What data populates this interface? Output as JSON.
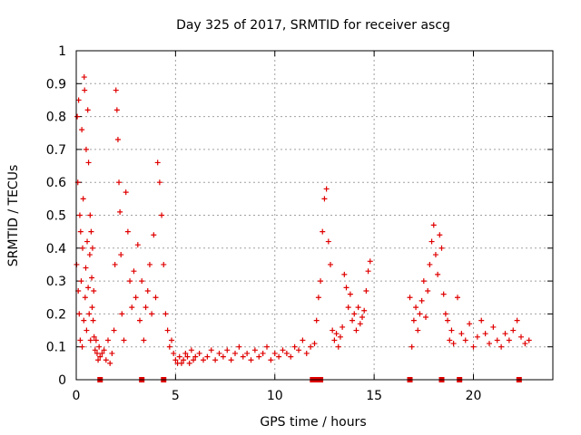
{
  "chart_data": {
    "type": "scatter",
    "title": "Day 325 of 2017, SRMTID for receiver ascg",
    "xlabel": "GPS time / hours",
    "ylabel": "SRMTID / TECUs",
    "xlim": [
      0,
      24
    ],
    "ylim": [
      0,
      1
    ],
    "grid": true,
    "marker": "plus",
    "color": "#e00000",
    "x_ticks": [
      0,
      5,
      10,
      15,
      20
    ],
    "y_ticks": [
      0,
      0.1,
      0.2,
      0.3,
      0.4,
      0.5,
      0.6,
      0.7,
      0.8,
      0.9,
      1
    ],
    "x_tick_labels": [
      "0",
      "5",
      "10",
      "15",
      "20"
    ],
    "y_tick_labels": [
      "0",
      "0.1",
      "0.2",
      "0.3",
      "0.4",
      "0.5",
      "0.6",
      "0.7",
      "0.8",
      "0.9",
      "1"
    ],
    "series": [
      {
        "name": "SRMTID",
        "x": [
          0.02,
          0.05,
          0.08,
          0.1,
          0.12,
          0.15,
          0.18,
          0.2,
          0.22,
          0.25,
          0.28,
          0.3,
          0.32,
          0.35,
          0.38,
          0.4,
          0.42,
          0.45,
          0.48,
          0.5,
          0.52,
          0.55,
          0.58,
          0.6,
          0.62,
          0.65,
          0.68,
          0.7,
          0.72,
          0.75,
          0.78,
          0.8,
          0.82,
          0.85,
          0.88,
          0.9,
          0.95,
          1.0,
          1.05,
          1.1,
          1.15,
          1.2,
          1.3,
          1.4,
          1.5,
          1.6,
          1.7,
          1.8,
          1.9,
          1.95,
          2.0,
          2.05,
          2.1,
          2.15,
          2.2,
          2.25,
          2.3,
          2.4,
          2.5,
          2.6,
          2.7,
          2.8,
          2.9,
          3.0,
          3.1,
          3.2,
          3.3,
          3.4,
          3.5,
          3.6,
          3.7,
          3.8,
          3.9,
          4.0,
          4.1,
          4.2,
          4.3,
          4.4,
          4.5,
          4.6,
          4.7,
          4.8,
          4.9,
          5.0,
          5.1,
          5.2,
          5.3,
          5.4,
          5.5,
          5.6,
          5.7,
          5.8,
          5.9,
          6.0,
          6.2,
          6.4,
          6.6,
          6.8,
          7.0,
          7.2,
          7.4,
          7.6,
          7.8,
          8.0,
          8.2,
          8.4,
          8.6,
          8.8,
          9.0,
          9.2,
          9.4,
          9.6,
          9.8,
          10.0,
          10.2,
          10.4,
          10.6,
          10.8,
          11.0,
          11.2,
          11.4,
          11.6,
          11.8,
          12.0,
          12.1,
          12.2,
          12.3,
          12.4,
          12.5,
          12.6,
          12.7,
          12.8,
          12.9,
          13.0,
          13.1,
          13.2,
          13.3,
          13.4,
          13.5,
          13.6,
          13.7,
          13.8,
          13.9,
          14.0,
          14.1,
          14.2,
          14.3,
          14.4,
          14.5,
          14.6,
          14.7,
          14.8,
          16.8,
          16.9,
          17.0,
          17.1,
          17.2,
          17.3,
          17.4,
          17.5,
          17.6,
          17.7,
          17.8,
          17.9,
          18.0,
          18.1,
          18.2,
          18.3,
          18.4,
          18.5,
          18.6,
          18.7,
          18.8,
          18.9,
          19.0,
          19.2,
          19.4,
          19.6,
          19.8,
          20.0,
          20.2,
          20.4,
          20.6,
          20.8,
          21.0,
          21.2,
          21.4,
          21.6,
          21.8,
          22.0,
          22.2,
          22.4,
          22.6,
          22.8
        ],
        "y": [
          0.35,
          0.8,
          0.6,
          0.27,
          0.85,
          0.2,
          0.5,
          0.12,
          0.45,
          0.3,
          0.76,
          0.1,
          0.4,
          0.55,
          0.18,
          0.92,
          0.88,
          0.25,
          0.34,
          0.7,
          0.15,
          0.42,
          0.82,
          0.28,
          0.66,
          0.2,
          0.38,
          0.5,
          0.12,
          0.45,
          0.31,
          0.22,
          0.4,
          0.18,
          0.27,
          0.13,
          0.09,
          0.12,
          0.08,
          0.06,
          0.1,
          0.07,
          0.08,
          0.09,
          0.06,
          0.12,
          0.05,
          0.08,
          0.15,
          0.35,
          0.88,
          0.82,
          0.73,
          0.6,
          0.51,
          0.38,
          0.2,
          0.12,
          0.57,
          0.45,
          0.3,
          0.22,
          0.33,
          0.25,
          0.41,
          0.18,
          0.3,
          0.12,
          0.22,
          0.27,
          0.35,
          0.2,
          0.44,
          0.25,
          0.66,
          0.6,
          0.5,
          0.35,
          0.2,
          0.15,
          0.1,
          0.12,
          0.08,
          0.06,
          0.05,
          0.07,
          0.05,
          0.06,
          0.08,
          0.07,
          0.05,
          0.09,
          0.06,
          0.07,
          0.08,
          0.06,
          0.07,
          0.09,
          0.06,
          0.08,
          0.07,
          0.09,
          0.06,
          0.08,
          0.1,
          0.07,
          0.08,
          0.06,
          0.09,
          0.07,
          0.08,
          0.1,
          0.06,
          0.08,
          0.07,
          0.09,
          0.08,
          0.07,
          0.1,
          0.09,
          0.12,
          0.08,
          0.1,
          0.11,
          0.18,
          0.25,
          0.3,
          0.45,
          0.55,
          0.58,
          0.42,
          0.35,
          0.15,
          0.12,
          0.14,
          0.1,
          0.13,
          0.16,
          0.32,
          0.28,
          0.22,
          0.26,
          0.18,
          0.2,
          0.15,
          0.22,
          0.17,
          0.19,
          0.21,
          0.27,
          0.33,
          0.36,
          0.25,
          0.1,
          0.18,
          0.22,
          0.15,
          0.2,
          0.24,
          0.3,
          0.19,
          0.27,
          0.35,
          0.42,
          0.47,
          0.38,
          0.32,
          0.44,
          0.4,
          0.26,
          0.2,
          0.18,
          0.12,
          0.15,
          0.11,
          0.25,
          0.14,
          0.12,
          0.17,
          0.1,
          0.13,
          0.18,
          0.14,
          0.11,
          0.16,
          0.12,
          0.1,
          0.14,
          0.12,
          0.15,
          0.18,
          0.13,
          0.11,
          0.12
        ],
        "axis_markers_x": [
          1.2,
          3.3,
          4.4,
          11.9,
          12.0,
          12.1,
          12.2,
          12.3,
          16.8,
          18.4,
          19.3,
          22.3
        ]
      }
    ]
  }
}
